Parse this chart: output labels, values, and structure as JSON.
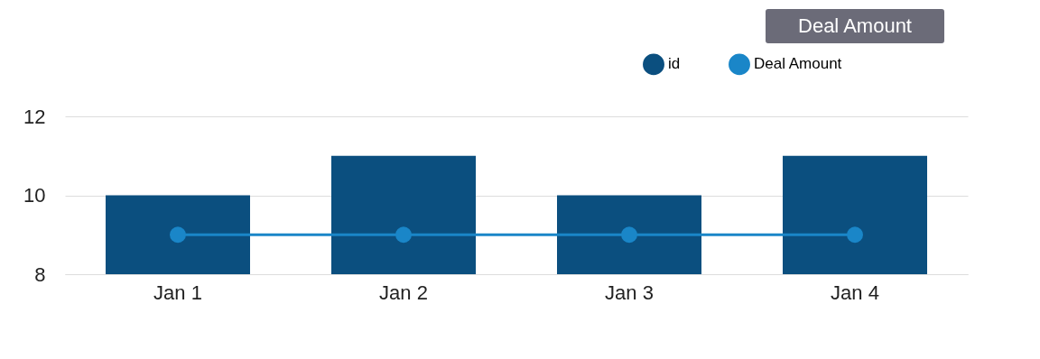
{
  "chart_data": {
    "type": "bar",
    "categories": [
      "Jan 1",
      "Jan 2",
      "Jan 3",
      "Jan 4"
    ],
    "series": [
      {
        "name": "id",
        "type": "bar",
        "color": "#0b4f7f",
        "values": [
          10,
          11,
          10,
          11
        ]
      },
      {
        "name": "Deal Amount",
        "type": "line",
        "color": "#1a86c8",
        "values": [
          9,
          9,
          9,
          9
        ]
      }
    ],
    "ylim": [
      8,
      12
    ],
    "yticks": [
      8,
      10,
      12
    ],
    "grid": "y",
    "legend": "top right",
    "marker": "circle",
    "line_style": "solid",
    "annotations": [
      "Deal Amount"
    ]
  }
}
